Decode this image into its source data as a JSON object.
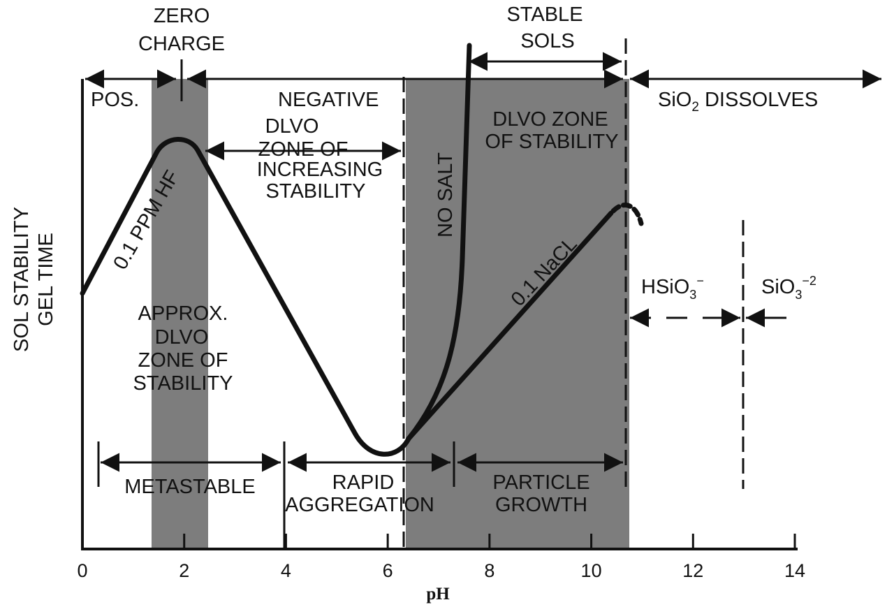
{
  "chart_data": {
    "type": "line",
    "title": "",
    "xlabel": "pH",
    "ylabel_lines": [
      "SOL STABILITY",
      "GEL TIME"
    ],
    "xlim": [
      0,
      14
    ],
    "x_ticks": [
      "0",
      "2",
      "4",
      "6",
      "8",
      "10",
      "12",
      "14"
    ],
    "shaded_bands": [
      {
        "from": 1.4,
        "to": 2.5
      },
      {
        "from": 6.4,
        "to": 10.75
      }
    ],
    "series": [
      {
        "name": "0.1 PPM HF",
        "values_description_x": [
          0,
          0.5,
          1.0,
          1.5,
          1.8,
          2.0,
          2.3,
          3.0,
          4.0,
          5.0,
          5.5,
          5.8,
          6.0,
          6.2,
          6.4
        ],
        "y_relative": [
          0.45,
          0.56,
          0.67,
          0.78,
          0.84,
          0.85,
          0.82,
          0.65,
          0.42,
          0.19,
          0.08,
          0.03,
          0.02,
          0.03,
          0.06
        ]
      },
      {
        "name": "0.1 NaCL",
        "values_description_x": [
          6.4,
          7.0,
          8.0,
          9.0,
          10.0,
          10.5
        ],
        "y_relative": [
          0.06,
          0.14,
          0.27,
          0.41,
          0.55,
          0.62
        ]
      },
      {
        "name": "NO SALT",
        "values_description_x": [
          6.4,
          6.9,
          7.2,
          7.45,
          7.6,
          7.65
        ],
        "y_relative": [
          0.06,
          0.16,
          0.3,
          0.52,
          0.8,
          0.99
        ]
      }
    ],
    "annotations": {
      "zero_charge": [
        "ZERO",
        "CHARGE"
      ],
      "stable_sols": [
        "STABLE",
        "SOLS"
      ],
      "pos": "POS.",
      "negative": "NEGATIVE",
      "sio2_dissolves": "SiO",
      "sio2_sub": "2",
      "sio2_rest": " DISSOLVES",
      "dlvo_increasing": [
        "DLVO",
        "ZONE OF",
        "INCREASING",
        "STABILITY"
      ],
      "dlvo_zone": [
        "DLVO ZONE",
        "OF STABILITY"
      ],
      "approx_dlvo": [
        "APPROX.",
        "DLVO",
        "ZONE OF",
        "STABILITY"
      ],
      "hsio3": "HSiO",
      "hsio3_sub": "3",
      "hsio3_sup": "−",
      "sio3": "SiO",
      "sio3_sub": "3",
      "sio3_sup": "−2",
      "metastable": "METASTABLE",
      "rapid_aggregation": [
        "RAPID",
        "AGGREGATION"
      ],
      "particle_growth": [
        "PARTICLE",
        "GROWTH"
      ]
    },
    "colors": {
      "band": "#7d7d7d",
      "ink": "#111111"
    },
    "grid": false,
    "legend": "none"
  }
}
